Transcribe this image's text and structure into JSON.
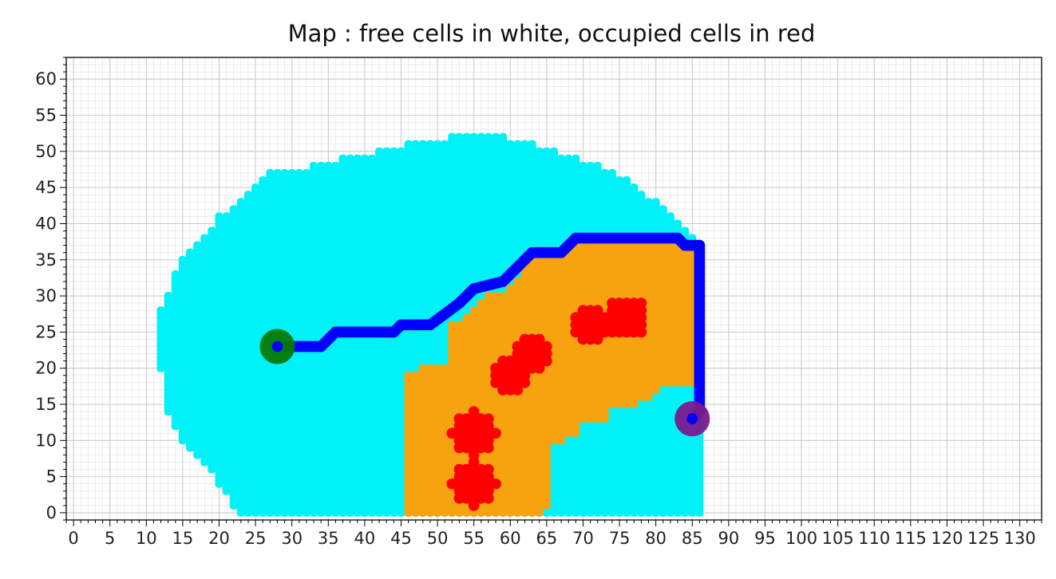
{
  "chart_data": {
    "type": "scatter",
    "title": "Map : free cells in white, occupied cells in red",
    "xlabel": "",
    "ylabel": "",
    "xlim": [
      -1,
      133
    ],
    "ylim": [
      -1,
      63
    ],
    "x_ticks": [
      0,
      5,
      10,
      15,
      20,
      25,
      30,
      35,
      40,
      45,
      50,
      55,
      60,
      65,
      70,
      75,
      80,
      85,
      90,
      95,
      100,
      105,
      110,
      115,
      120,
      125,
      130
    ],
    "y_ticks": [
      0,
      5,
      10,
      15,
      20,
      25,
      30,
      35,
      40,
      45,
      50,
      55,
      60
    ],
    "grid": true,
    "minor_grid": true,
    "colors": {
      "explored": "#00f2f8",
      "frontier": "#f7a20f",
      "occupied": "#ff0000",
      "path": "#0000ff",
      "start": "#067a06",
      "goal": "#7a1a8c",
      "grid": "#cccccc"
    },
    "explored_region": {
      "cells": "unit grid cells, y ranges listed per x column",
      "columns": [
        [
          12,
          20,
          28
        ],
        [
          13,
          14,
          30
        ],
        [
          14,
          12,
          33
        ],
        [
          15,
          10,
          35
        ],
        [
          16,
          9,
          36
        ],
        [
          17,
          8,
          37
        ],
        [
          18,
          7,
          38
        ],
        [
          19,
          6,
          39
        ],
        [
          20,
          4,
          41
        ],
        [
          21,
          3,
          41
        ],
        [
          22,
          1,
          42
        ],
        [
          23,
          0,
          43
        ],
        [
          24,
          0,
          44
        ],
        [
          25,
          0,
          45
        ],
        [
          26,
          0,
          46
        ],
        [
          27,
          0,
          47
        ],
        [
          28,
          0,
          47
        ],
        [
          29,
          0,
          47
        ],
        [
          30,
          0,
          47
        ],
        [
          31,
          0,
          47
        ],
        [
          32,
          0,
          47
        ],
        [
          33,
          0,
          48
        ],
        [
          34,
          0,
          48
        ],
        [
          35,
          0,
          48
        ],
        [
          36,
          0,
          48
        ],
        [
          37,
          0,
          49
        ],
        [
          38,
          0,
          49
        ],
        [
          39,
          0,
          49
        ],
        [
          40,
          0,
          49
        ],
        [
          41,
          0,
          49
        ],
        [
          42,
          0,
          50
        ],
        [
          43,
          0,
          50
        ],
        [
          44,
          0,
          50
        ],
        [
          45,
          0,
          50
        ],
        [
          46,
          0,
          51
        ],
        [
          47,
          0,
          51
        ],
        [
          48,
          0,
          51
        ],
        [
          49,
          0,
          51
        ],
        [
          50,
          0,
          51
        ],
        [
          51,
          0,
          51
        ],
        [
          52,
          0,
          52
        ],
        [
          53,
          0,
          52
        ],
        [
          54,
          0,
          52
        ],
        [
          55,
          0,
          52
        ],
        [
          56,
          0,
          52
        ],
        [
          57,
          0,
          52
        ],
        [
          58,
          0,
          52
        ],
        [
          59,
          0,
          52
        ],
        [
          60,
          0,
          51
        ],
        [
          61,
          0,
          51
        ],
        [
          62,
          0,
          51
        ],
        [
          63,
          0,
          51
        ],
        [
          64,
          0,
          50
        ],
        [
          65,
          0,
          50
        ],
        [
          66,
          0,
          50
        ],
        [
          67,
          0,
          49
        ],
        [
          68,
          0,
          49
        ],
        [
          69,
          0,
          49
        ],
        [
          70,
          0,
          48
        ],
        [
          71,
          0,
          48
        ],
        [
          72,
          0,
          48
        ],
        [
          73,
          0,
          47
        ],
        [
          74,
          0,
          47
        ],
        [
          75,
          0,
          46
        ],
        [
          76,
          0,
          46
        ],
        [
          77,
          0,
          45
        ],
        [
          78,
          0,
          44
        ],
        [
          79,
          0,
          43
        ],
        [
          80,
          0,
          43
        ],
        [
          81,
          0,
          42
        ],
        [
          82,
          0,
          41
        ],
        [
          83,
          0,
          40
        ],
        [
          84,
          0,
          39
        ],
        [
          85,
          0,
          38
        ],
        [
          86,
          0,
          37
        ]
      ]
    },
    "frontier_region": {
      "cells": "unit grid cells, y ranges listed per x column",
      "columns": [
        [
          46,
          0,
          19
        ],
        [
          47,
          0,
          19
        ],
        [
          48,
          0,
          20
        ],
        [
          49,
          0,
          20
        ],
        [
          50,
          0,
          20
        ],
        [
          51,
          0,
          20
        ],
        [
          52,
          0,
          26
        ],
        [
          53,
          0,
          26
        ],
        [
          54,
          0,
          27
        ],
        [
          55,
          0,
          28
        ],
        [
          56,
          0,
          29
        ],
        [
          57,
          0,
          30
        ],
        [
          58,
          0,
          30
        ],
        [
          59,
          0,
          30
        ],
        [
          60,
          0,
          31
        ],
        [
          61,
          0,
          32
        ],
        [
          62,
          0,
          34
        ],
        [
          63,
          0,
          35
        ],
        [
          64,
          0,
          35
        ],
        [
          65,
          1,
          36
        ],
        [
          66,
          10,
          36
        ],
        [
          67,
          10,
          36
        ],
        [
          68,
          11,
          37
        ],
        [
          69,
          11,
          37
        ],
        [
          70,
          13,
          37
        ],
        [
          71,
          13,
          37
        ],
        [
          72,
          13,
          37
        ],
        [
          73,
          13,
          37
        ],
        [
          74,
          15,
          37
        ],
        [
          75,
          15,
          37
        ],
        [
          76,
          15,
          37
        ],
        [
          77,
          15,
          37
        ],
        [
          78,
          16,
          37
        ],
        [
          79,
          16,
          37
        ],
        [
          80,
          17,
          37
        ],
        [
          81,
          18,
          37
        ],
        [
          82,
          18,
          37
        ],
        [
          83,
          18,
          37
        ],
        [
          84,
          18,
          37
        ],
        [
          85,
          18,
          37
        ]
      ]
    },
    "obstacles": [
      {
        "center": [
          55,
          11
        ],
        "radius": 3
      },
      {
        "center": [
          55,
          4
        ],
        "radius": 3
      },
      {
        "center": [
          60,
          19
        ],
        "radius": 2.5
      },
      {
        "center": [
          63,
          22
        ],
        "radius": 2.5
      },
      {
        "center": [
          71,
          26
        ],
        "radius": 2.6
      },
      {
        "center": [
          76,
          27
        ],
        "radius": 2.8
      }
    ],
    "path": [
      [
        28,
        23
      ],
      [
        34,
        23
      ],
      [
        36,
        25
      ],
      [
        44,
        25
      ],
      [
        45,
        26
      ],
      [
        49,
        26
      ],
      [
        53,
        29
      ],
      [
        55,
        31
      ],
      [
        59,
        32
      ],
      [
        63,
        36
      ],
      [
        67,
        36
      ],
      [
        69,
        38
      ],
      [
        83,
        38
      ],
      [
        84,
        37
      ],
      [
        86,
        37
      ],
      [
        86,
        14
      ],
      [
        85,
        13
      ]
    ],
    "start": [
      28,
      23
    ],
    "goal": [
      85,
      13
    ]
  }
}
